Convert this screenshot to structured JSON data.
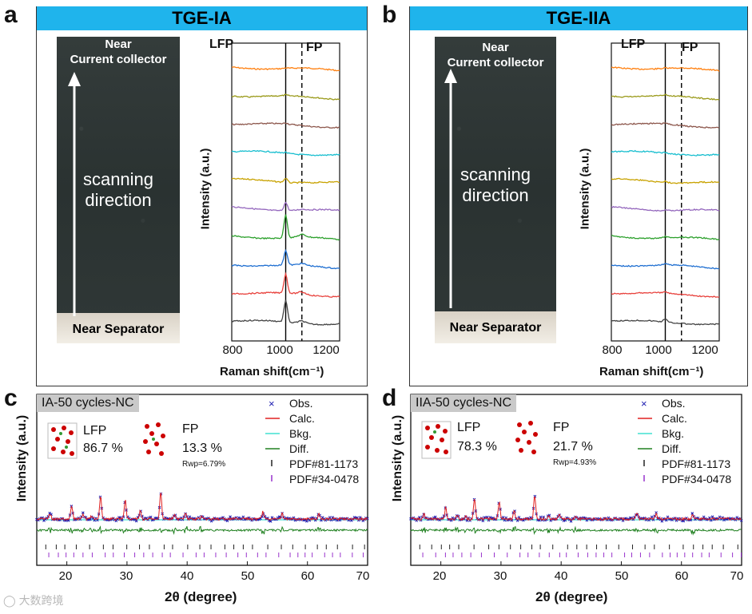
{
  "panels_top": [
    {
      "letter": "a",
      "title": "TGE-IA",
      "photo_top_label": "Near\nCurrent collector",
      "photo_mid_label": "scanning\ndirection",
      "photo_bottom_label": "Near Separator",
      "raman_regions": [
        "LFP",
        "FP"
      ],
      "x_ticks": [
        "800",
        "1000",
        "1200"
      ],
      "x_label": "Raman shift(cm⁻¹)",
      "y_label": "Intensity (a.u.)"
    },
    {
      "letter": "b",
      "title": "TGE-IIA",
      "photo_top_label": "Near\nCurrent collector",
      "photo_mid_label": "scanning\ndirection",
      "photo_bottom_label": "Near Separator",
      "raman_regions": [
        "LFP",
        "FP"
      ],
      "x_ticks": [
        "800",
        "1000",
        "1200"
      ],
      "x_label": "Raman shift(cm⁻¹)",
      "y_label": "Intensity (a.u.)"
    }
  ],
  "panels_bottom": [
    {
      "letter": "c",
      "sample": "IA-50 cycles-NC",
      "lfp_label": "LFP",
      "lfp_pct": "86.7 %",
      "fp_label": "FP",
      "fp_pct": "13.3 %",
      "rwp": "Rwp=6.79%",
      "legend": [
        "Obs.",
        "Calc.",
        "Bkg.",
        "Diff.",
        "PDF#81-1173",
        "PDF#34-0478"
      ],
      "x_ticks": [
        "20",
        "30",
        "40",
        "50",
        "60",
        "70"
      ],
      "x_label": "2θ (degree)",
      "y_label": "Intensity (a.u.)"
    },
    {
      "letter": "d",
      "sample": "IIA-50 cycles-NC",
      "lfp_label": "LFP",
      "lfp_pct": "78.3 %",
      "fp_label": "FP",
      "fp_pct": "21.7 %",
      "rwp": "Rwp=4.93%",
      "legend": [
        "Obs.",
        "Calc.",
        "Bkg.",
        "Diff.",
        "PDF#81-1173",
        "PDF#34-0478"
      ],
      "x_ticks": [
        "20",
        "30",
        "40",
        "50",
        "60",
        "70"
      ],
      "x_label": "2θ (degree)",
      "y_label": "Intensity (a.u.)"
    }
  ],
  "watermark": "大数跨境",
  "colors": {
    "title_bar": "#1fb4ec",
    "raman_series": [
      "#ff7f0e",
      "#9a9a1a",
      "#8c564b",
      "#17becf",
      "#c8a200",
      "#9467bd",
      "#2ca02c",
      "#1f6fd1",
      "#e8413c",
      "#444444"
    ],
    "obs": "#1a1ab0",
    "calc": "#e02020",
    "bkg": "#40e0d0",
    "diff": "#208020",
    "pdf1": "#222222",
    "pdf2": "#9933cc"
  },
  "chart_data": [
    {
      "type": "line",
      "panel": "a",
      "xlabel": "Raman shift(cm⁻¹)",
      "ylabel": "Intensity (a.u.)",
      "xlim": [
        800,
        1200
      ],
      "x_ticks": [
        800,
        1000,
        1200
      ],
      "reference_lines": [
        {
          "x": 1000,
          "style": "solid"
        },
        {
          "x": 1060,
          "style": "dashed"
        }
      ],
      "region_labels": [
        "LFP",
        "FP"
      ],
      "series_count": 10,
      "peak_x": 1000,
      "peak_heights": [
        0.02,
        0.03,
        0.05,
        0.04,
        0.15,
        0.3,
        0.85,
        0.55,
        0.7,
        0.8
      ]
    },
    {
      "type": "line",
      "panel": "b",
      "xlabel": "Raman shift(cm⁻¹)",
      "ylabel": "Intensity (a.u.)",
      "xlim": [
        800,
        1200
      ],
      "x_ticks": [
        800,
        1000,
        1200
      ],
      "reference_lines": [
        {
          "x": 1000,
          "style": "solid"
        },
        {
          "x": 1060,
          "style": "dashed"
        }
      ],
      "region_labels": [
        "LFP",
        "FP"
      ],
      "series_count": 10,
      "peak_x": 1000,
      "peak_heights": [
        0.02,
        0.03,
        0.04,
        0.03,
        0.05,
        0.03,
        0.05,
        0.06,
        0.05,
        0.12
      ]
    },
    {
      "type": "line",
      "panel": "c",
      "xlabel": "2θ (degree)",
      "ylabel": "Intensity (a.u.)",
      "xlim": [
        15,
        70
      ],
      "x_ticks": [
        20,
        30,
        40,
        50,
        60,
        70
      ],
      "peaks": [
        [
          17.2,
          0.15
        ],
        [
          20.8,
          0.35
        ],
        [
          22.7,
          0.12
        ],
        [
          24.1,
          0.08
        ],
        [
          25.6,
          0.6
        ],
        [
          29.7,
          0.5
        ],
        [
          32.2,
          0.22
        ],
        [
          35.6,
          0.7
        ],
        [
          37.9,
          0.12
        ],
        [
          39.7,
          0.18
        ],
        [
          42.4,
          0.08
        ],
        [
          52.6,
          0.2
        ],
        [
          55.8,
          0.15
        ],
        [
          61.9,
          0.12
        ]
      ],
      "series": [
        {
          "name": "Obs."
        },
        {
          "name": "Calc."
        },
        {
          "name": "Bkg."
        },
        {
          "name": "Diff."
        },
        {
          "name": "PDF#81-1173"
        },
        {
          "name": "PDF#34-0478"
        }
      ]
    },
    {
      "type": "line",
      "panel": "d",
      "xlabel": "2θ (degree)",
      "ylabel": "Intensity (a.u.)",
      "xlim": [
        15,
        70
      ],
      "x_ticks": [
        20,
        30,
        40,
        50,
        60,
        70
      ],
      "peaks": [
        [
          17.2,
          0.12
        ],
        [
          20.8,
          0.3
        ],
        [
          22.7,
          0.1
        ],
        [
          24.1,
          0.07
        ],
        [
          25.6,
          0.55
        ],
        [
          29.7,
          0.45
        ],
        [
          32.2,
          0.2
        ],
        [
          35.6,
          0.62
        ],
        [
          37.9,
          0.1
        ],
        [
          39.7,
          0.15
        ],
        [
          42.4,
          0.07
        ],
        [
          52.6,
          0.18
        ],
        [
          55.8,
          0.13
        ],
        [
          61.9,
          0.11
        ]
      ],
      "series": [
        {
          "name": "Obs."
        },
        {
          "name": "Calc."
        },
        {
          "name": "Bkg."
        },
        {
          "name": "Diff."
        },
        {
          "name": "PDF#81-1173"
        },
        {
          "name": "PDF#34-0478"
        }
      ]
    }
  ]
}
